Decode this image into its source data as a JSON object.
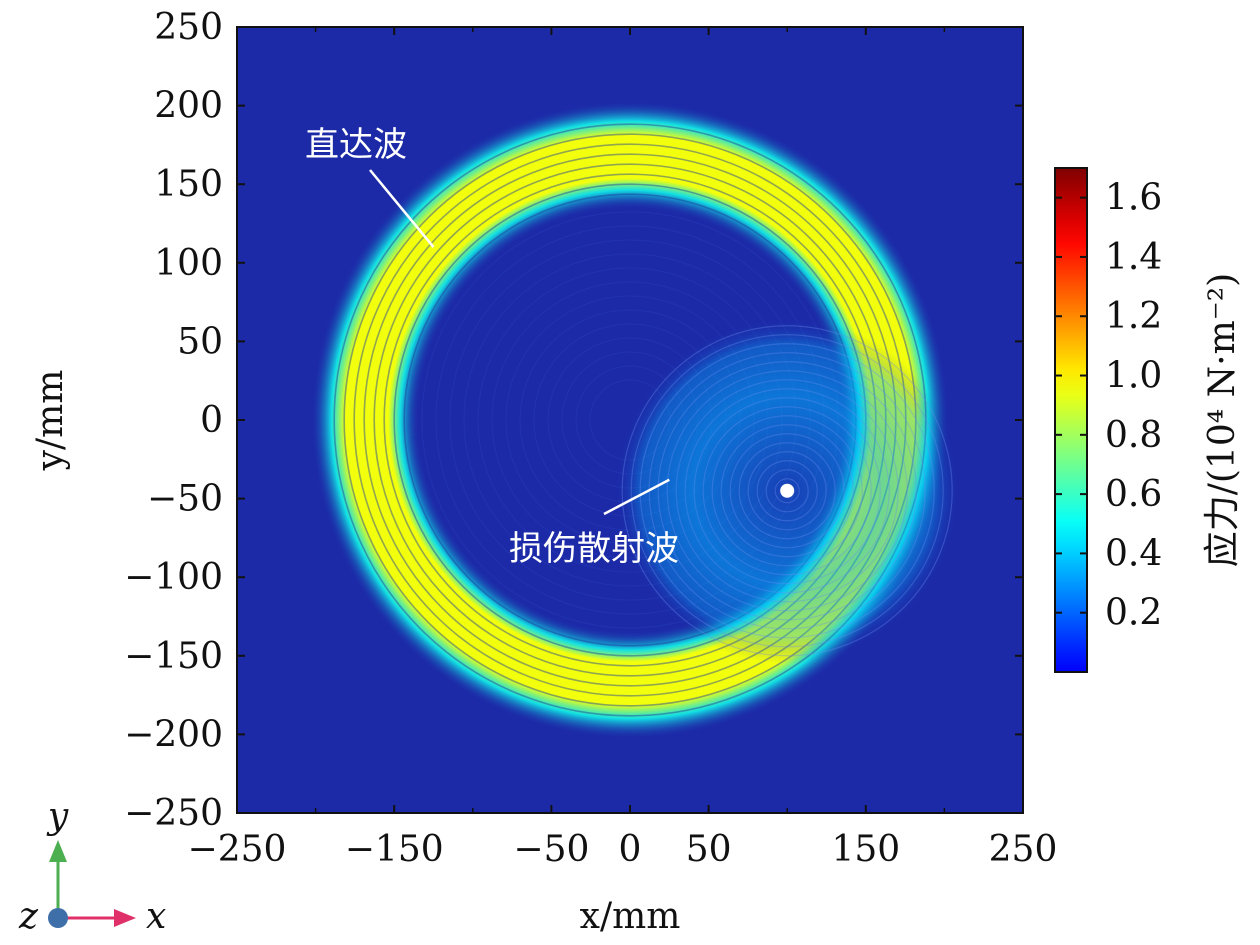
{
  "chart_data": {
    "type": "heatmap",
    "title": "",
    "xlabel": "x/mm",
    "ylabel": "y/mm",
    "xlim": [
      -250,
      250
    ],
    "ylim": [
      -250,
      250
    ],
    "x_ticks": [
      -250,
      -150,
      -50,
      0,
      50,
      150,
      250
    ],
    "x_tick_labels": [
      "−250",
      "−150",
      "−50",
      "0",
      "50",
      "150",
      "250"
    ],
    "x_minor_ticks": [
      -200,
      -100,
      100,
      200
    ],
    "y_ticks": [
      250,
      200,
      150,
      100,
      50,
      0,
      -50,
      -100,
      -150,
      -200,
      -250
    ],
    "y_tick_labels": [
      "250",
      "200",
      "150",
      "100",
      "50",
      "0",
      "−50",
      "−100",
      "−150",
      "−200",
      "−250"
    ],
    "grid": false,
    "colorbar": {
      "label": "应力/(10⁴ N·m⁻²)",
      "min": 0,
      "max": 1.7,
      "ticks": [
        0.2,
        0.4,
        0.6,
        0.8,
        1.0,
        1.2,
        1.4,
        1.6
      ],
      "tick_labels": [
        "0.2",
        "0.4",
        "0.6",
        "0.8",
        "1.0",
        "1.2",
        "1.4",
        "1.6"
      ],
      "colormap": "jet"
    },
    "features": {
      "direct_wave_ring": {
        "center_x": 0,
        "center_y": 0,
        "inner_radius": 150,
        "outer_radius": 185,
        "peak_stress": 0.95
      },
      "damage": {
        "x": 100,
        "y": -45
      },
      "scattered_wave": {
        "center_x": 100,
        "center_y": -45,
        "max_radius": 110,
        "peak_stress": 0.35
      }
    },
    "annotations": [
      {
        "text": "直达波",
        "x": -125,
        "y": 110
      },
      {
        "text": "损伤散射波",
        "x": 25,
        "y": -38
      }
    ]
  },
  "coordinate_axes": {
    "y": "y",
    "x": "x",
    "z": "z"
  },
  "colors": {
    "background_field": "#1c2aa8",
    "axis_y_arrow": "#4caf50",
    "axis_x_arrow": "#e0306a",
    "axis_origin": "#3f6fa8"
  }
}
